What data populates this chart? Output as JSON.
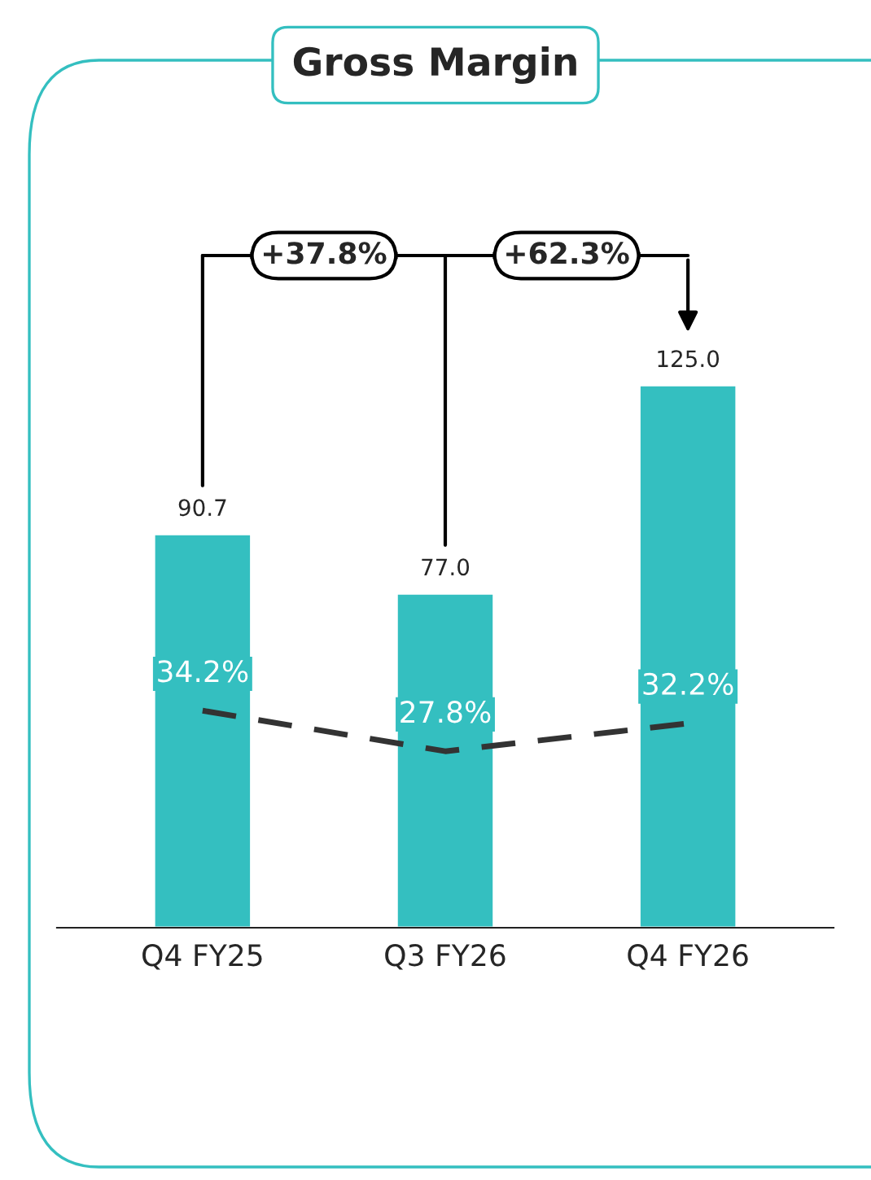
{
  "chart_data": {
    "type": "bar",
    "title": "Gross Margin",
    "categories": [
      "Q4 FY25",
      "Q3 FY26",
      "Q4 FY26"
    ],
    "series": [
      {
        "color": "#34bfc0",
        "values": [
          90.7,
          77.0,
          125.0
        ],
        "value_labels": [
          "90.7",
          "77.0",
          "125.0"
        ]
      },
      {
        "type": "line",
        "axis": "y2",
        "color": "#333333",
        "line_style": "dashed",
        "marker": "none",
        "values": [
          34.2,
          27.8,
          32.2
        ],
        "value_labels": [
          "34.2%",
          "27.8%",
          "32.2%"
        ]
      }
    ],
    "grid": false,
    "legend": false,
    "tick_labels": "x",
    "annotations": [
      "+37.8%",
      "+62.3%"
    ]
  }
}
